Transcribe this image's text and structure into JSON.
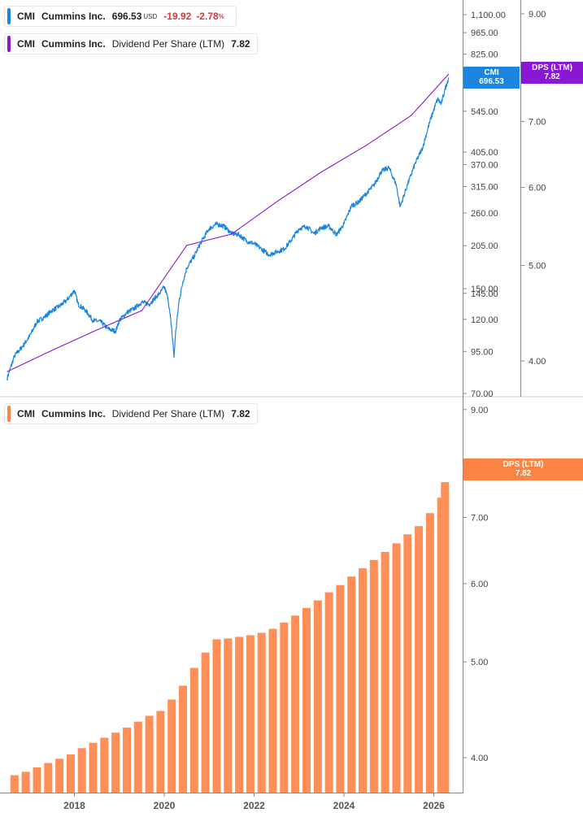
{
  "legend": {
    "price": {
      "ticker": "CMI",
      "name": "Cummins Inc.",
      "value": "696.53",
      "currency": "USD",
      "change": "-19.92",
      "change_pct": "-2.78",
      "pct_sign": "%"
    },
    "dps_top": {
      "ticker": "CMI",
      "name": "Cummins Inc.",
      "series": "Dividend Per Share (LTM)",
      "value": "7.82"
    },
    "dps_bottom": {
      "ticker": "CMI",
      "name": "Cummins Inc.",
      "series": "Dividend Per Share (LTM)",
      "value": "7.82"
    }
  },
  "tags": {
    "price": {
      "line1": "CMI",
      "line2": "696.53"
    },
    "dps_top": {
      "line1": "DPS (LTM)",
      "line2": "7.82"
    },
    "dps_bottom": {
      "line1": "DPS (LTM)",
      "line2": "7.82"
    }
  },
  "colors": {
    "price": "#1a86e0",
    "dps_line": "#8a16d6",
    "dps_bar": "#ff8f57",
    "dps_tag_top": "#8a16d6",
    "dps_tag_bottom": "#fb8445",
    "axis": "#888888",
    "grid_divider": "#d0d0d0"
  },
  "chart_data": [
    {
      "type": "line",
      "title": "",
      "xlabel": "",
      "ylabel": "",
      "log_scale": true,
      "grid": false,
      "legend_position": "top-left",
      "x_range": [
        "2016-07",
        "2026-06"
      ],
      "y_left_ticks": [
        "1,100.00",
        "965.00",
        "825.00",
        "545.00",
        "405.00",
        "370.00",
        "315.00",
        "260.00",
        "205.00",
        "150.00",
        "145.00",
        "120.00",
        "95.00",
        "70.00"
      ],
      "y_right_ticks": [
        "9.00",
        "7.00",
        "6.00",
        "5.00",
        "4.00"
      ],
      "series": [
        {
          "name": "CMI",
          "axis": "left",
          "points": [
            [
              "2016-07",
              78
            ],
            [
              "2016-09",
              92
            ],
            [
              "2016-11",
              98
            ],
            [
              "2017-01",
              106
            ],
            [
              "2017-03",
              118
            ],
            [
              "2017-05",
              122
            ],
            [
              "2017-07",
              128
            ],
            [
              "2017-09",
              132
            ],
            [
              "2017-11",
              138
            ],
            [
              "2018-01",
              148
            ],
            [
              "2018-02",
              134
            ],
            [
              "2018-04",
              128
            ],
            [
              "2018-06",
              119
            ],
            [
              "2018-08",
              118
            ],
            [
              "2018-10",
              112
            ],
            [
              "2018-12",
              110
            ],
            [
              "2019-01",
              119
            ],
            [
              "2019-03",
              126
            ],
            [
              "2019-05",
              130
            ],
            [
              "2019-07",
              136
            ],
            [
              "2019-09",
              134
            ],
            [
              "2019-11",
              142
            ],
            [
              "2019-12",
              146
            ],
            [
              "2020-01",
              152
            ],
            [
              "2020-02",
              140
            ],
            [
              "2020-03",
              112
            ],
            [
              "2020-03-20",
              91
            ],
            [
              "2020-04",
              108
            ],
            [
              "2020-05",
              138
            ],
            [
              "2020-06",
              158
            ],
            [
              "2020-07",
              174
            ],
            [
              "2020-09",
              190
            ],
            [
              "2020-11",
              212
            ],
            [
              "2021-01",
              232
            ],
            [
              "2021-03",
              240
            ],
            [
              "2021-05",
              236
            ],
            [
              "2021-07",
              224
            ],
            [
              "2021-09",
              222
            ],
            [
              "2021-11",
              212
            ],
            [
              "2022-01",
              208
            ],
            [
              "2022-03",
              200
            ],
            [
              "2022-05",
              192
            ],
            [
              "2022-07",
              196
            ],
            [
              "2022-09",
              200
            ],
            [
              "2022-11",
              214
            ],
            [
              "2023-01",
              232
            ],
            [
              "2023-03",
              236
            ],
            [
              "2023-05",
              224
            ],
            [
              "2023-07",
              234
            ],
            [
              "2023-09",
              236
            ],
            [
              "2023-11",
              222
            ],
            [
              "2024-01",
              240
            ],
            [
              "2024-03",
              274
            ],
            [
              "2024-05",
              282
            ],
            [
              "2024-07",
              300
            ],
            [
              "2024-09",
              318
            ],
            [
              "2024-11",
              352
            ],
            [
              "2025-01",
              362
            ],
            [
              "2025-03",
              318
            ],
            [
              "2025-04",
              272
            ],
            [
              "2025-06",
              320
            ],
            [
              "2025-08",
              372
            ],
            [
              "2025-10",
              418
            ],
            [
              "2025-12",
              508
            ],
            [
              "2026-02",
              596
            ],
            [
              "2026-03",
              575
            ],
            [
              "2026-04",
              640
            ],
            [
              "2026-05",
              696.53
            ]
          ]
        },
        {
          "name": "Dividend Per Share (LTM)",
          "axis": "right",
          "points": [
            [
              "2016-07",
              3.9
            ],
            [
              "2017-07",
              4.1
            ],
            [
              "2018-07",
              4.3
            ],
            [
              "2019-07",
              4.5
            ],
            [
              "2020-07",
              5.24
            ],
            [
              "2021-07",
              5.38
            ],
            [
              "2022-07",
              5.8
            ],
            [
              "2023-07",
              6.22
            ],
            [
              "2024-07",
              6.62
            ],
            [
              "2025-07",
              7.1
            ],
            [
              "2026-05",
              7.82
            ]
          ]
        }
      ]
    },
    {
      "type": "bar",
      "title": "",
      "xlabel": "",
      "ylabel": "",
      "log_scale": true,
      "grid": false,
      "x_ticks": [
        "2018",
        "2020",
        "2022",
        "2024",
        "2026"
      ],
      "y_ticks": [
        "9.00",
        "7.00",
        "6.00",
        "5.00",
        "4.00"
      ],
      "series": [
        {
          "name": "Dividend Per Share (LTM)",
          "x": [
            "2016-09",
            "2016-12",
            "2017-03",
            "2017-06",
            "2017-09",
            "2017-12",
            "2018-03",
            "2018-06",
            "2018-09",
            "2018-12",
            "2019-03",
            "2019-06",
            "2019-09",
            "2019-12",
            "2020-03",
            "2020-06",
            "2020-09",
            "2020-12",
            "2021-03",
            "2021-06",
            "2021-09",
            "2021-12",
            "2022-03",
            "2022-06",
            "2022-09",
            "2022-12",
            "2023-03",
            "2023-06",
            "2023-09",
            "2023-12",
            "2024-03",
            "2024-06",
            "2024-09",
            "2024-12",
            "2025-03",
            "2025-06",
            "2025-09",
            "2025-12",
            "2026-03",
            "2026-04"
          ],
          "values": [
            3.84,
            3.87,
            3.91,
            3.95,
            3.99,
            4.03,
            4.09,
            4.14,
            4.19,
            4.24,
            4.29,
            4.35,
            4.41,
            4.46,
            4.58,
            4.73,
            4.93,
            5.11,
            5.27,
            5.28,
            5.3,
            5.32,
            5.35,
            5.4,
            5.48,
            5.57,
            5.67,
            5.77,
            5.88,
            5.98,
            6.1,
            6.22,
            6.34,
            6.46,
            6.59,
            6.73,
            6.86,
            7.07,
            7.33,
            7.6
          ]
        }
      ]
    }
  ]
}
